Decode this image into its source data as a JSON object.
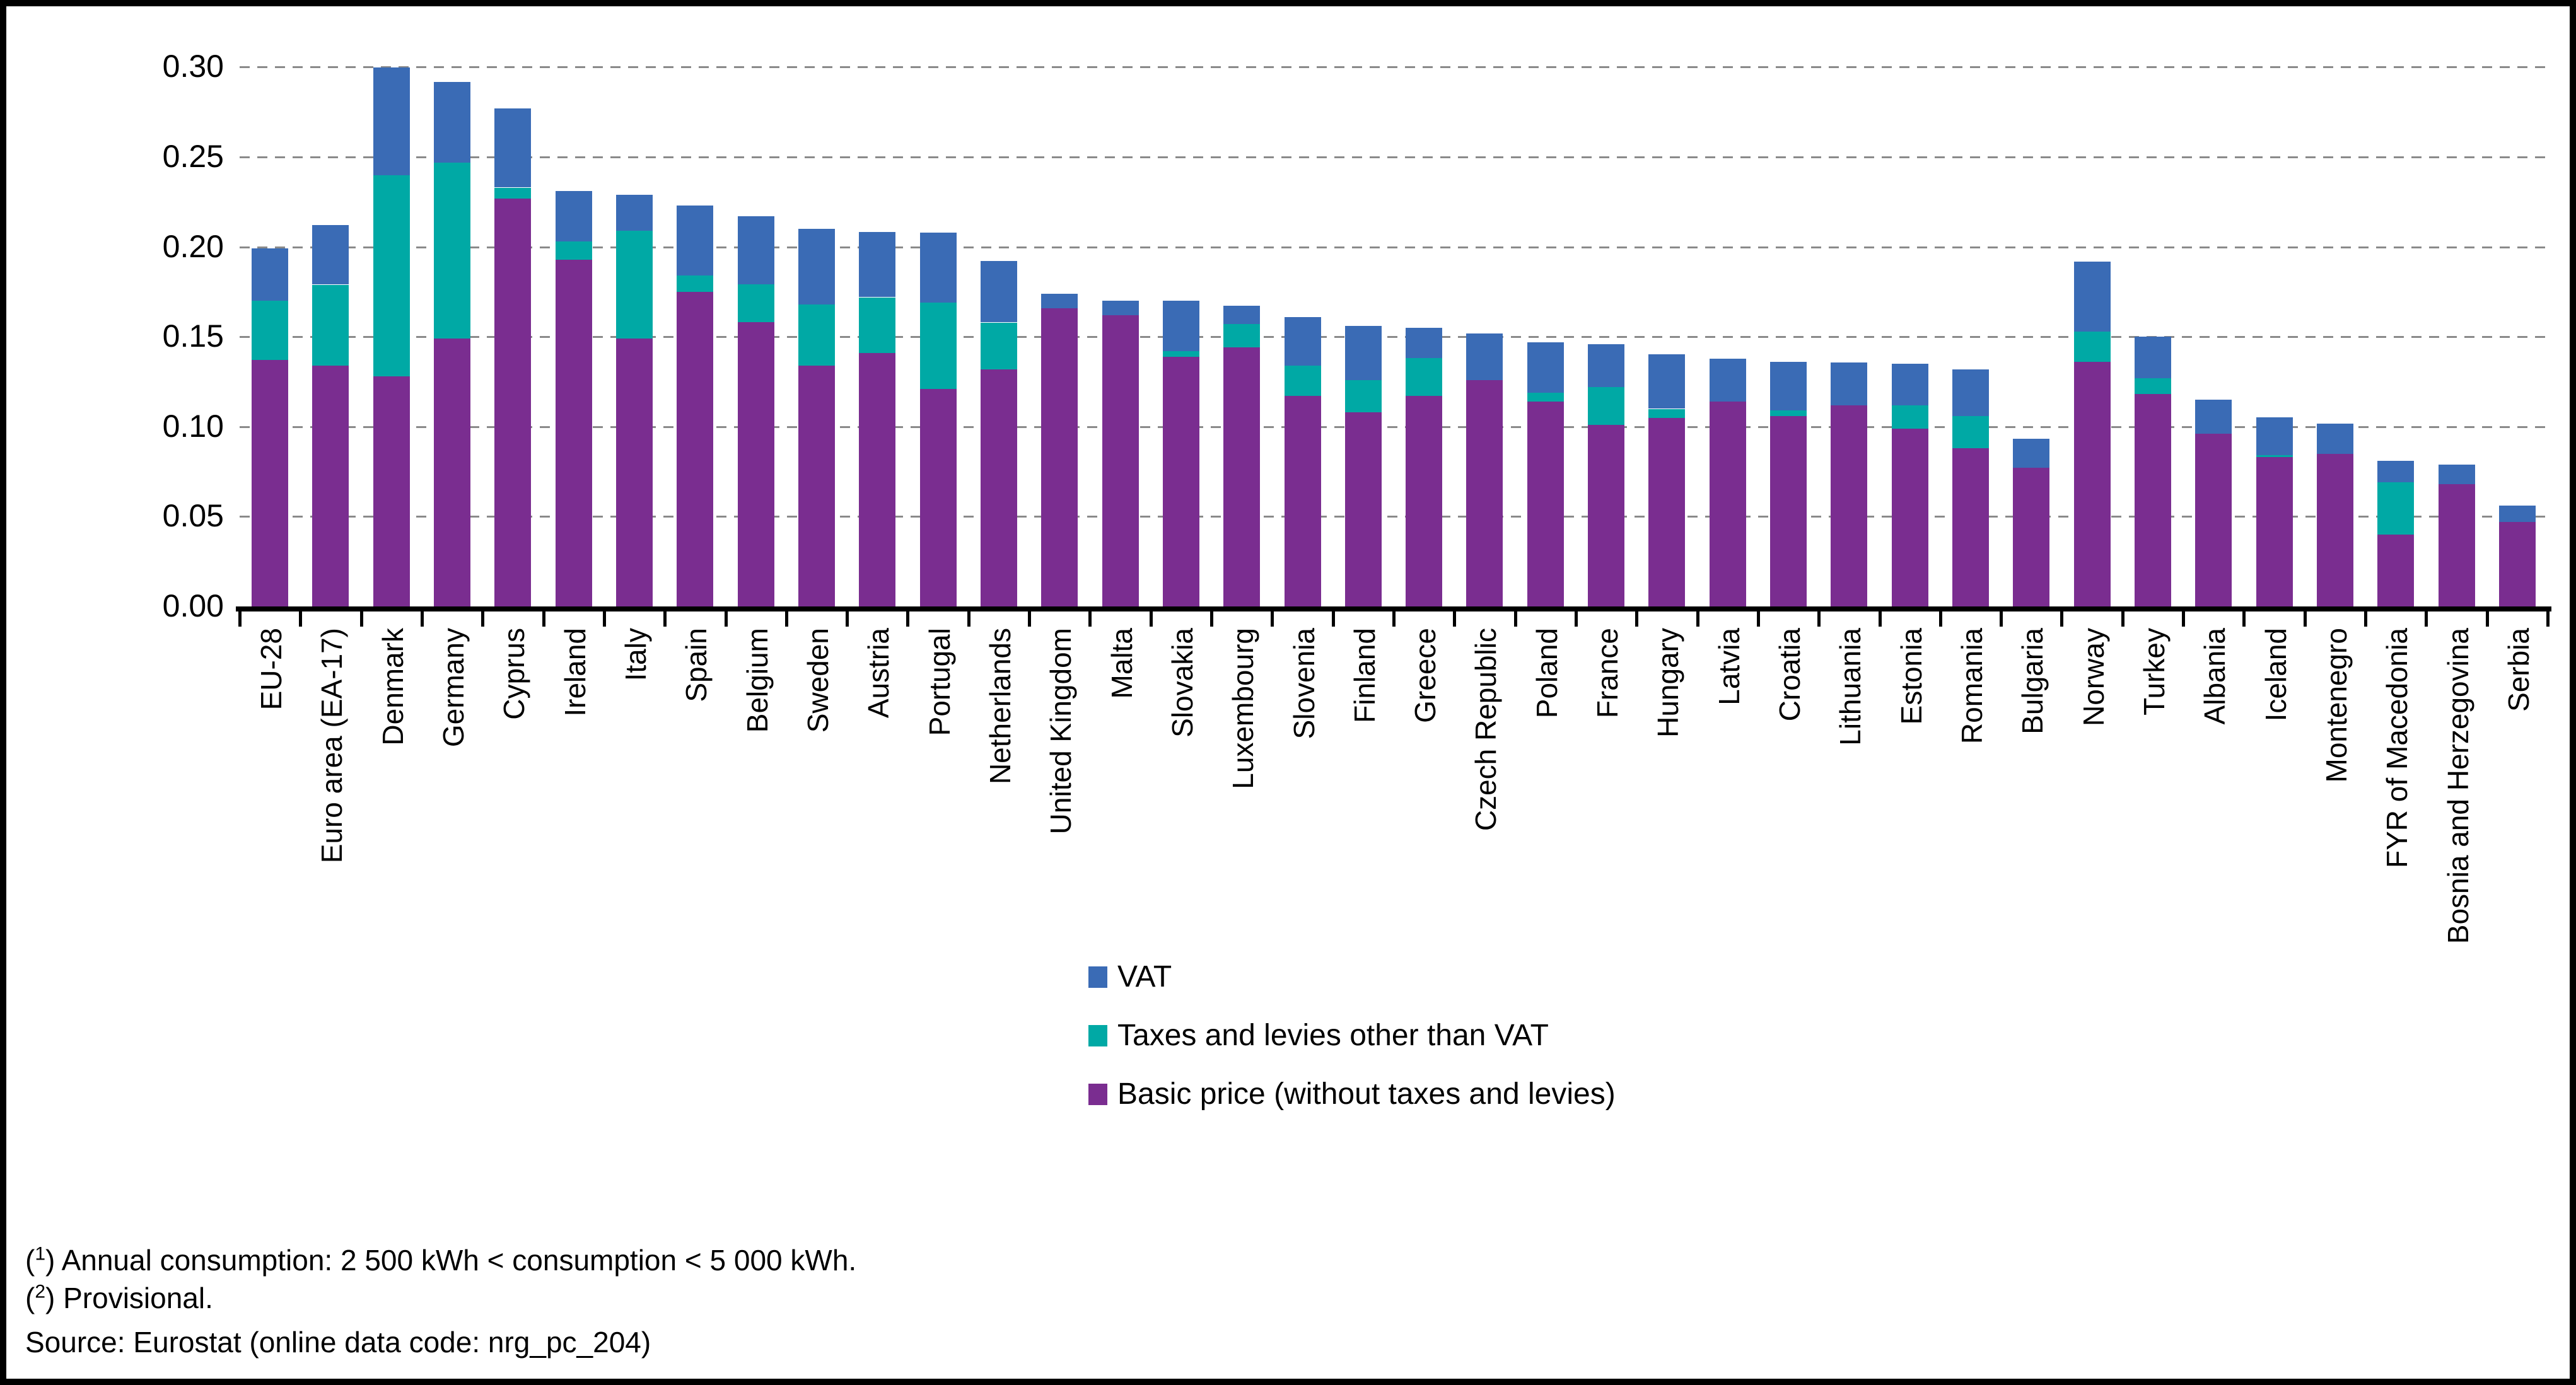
{
  "chart_data": {
    "type": "bar",
    "stacked": true,
    "title": "",
    "xlabel": "",
    "ylabel": "",
    "ylim": [
      0,
      0.3
    ],
    "ytick_step": 0.05,
    "ytick_labels": [
      "0.00",
      "0.05",
      "0.10",
      "0.15",
      "0.20",
      "0.25",
      "0.30"
    ],
    "grid": "horizontal-dashed",
    "gridline_color": "#8a8a8a",
    "axis_color": "#000000",
    "legend_position": "below-plot-center",
    "categories": [
      "EU-28",
      "Euro area (EA-17)",
      "Denmark",
      "Germany",
      "Cyprus",
      "Ireland",
      "Italy",
      "Spain",
      "Belgium",
      "Sweden",
      "Austria",
      "Portugal",
      "Netherlands",
      "United Kingdom",
      "Malta",
      "Slovakia",
      "Luxembourg",
      "Slovenia",
      "Finland",
      "Greece",
      "Czech Republic",
      "Poland",
      "France",
      "Hungary",
      "Latvia",
      "Croatia",
      "Lithuania",
      "Estonia",
      "Romania",
      "Bulgaria",
      "Norway",
      "Turkey",
      "Albania",
      "Iceland",
      "Montenegro",
      "FYR of Macedonia",
      "Bosnia and Herzegovina",
      "Serbia"
    ],
    "series": [
      {
        "name": "Basic price (without taxes and levies)",
        "color": "#7A2D90",
        "values": [
          0.137,
          0.134,
          0.128,
          0.149,
          0.227,
          0.193,
          0.149,
          0.175,
          0.158,
          0.134,
          0.141,
          0.121,
          0.132,
          0.166,
          0.162,
          0.139,
          0.144,
          0.117,
          0.108,
          0.117,
          0.126,
          0.114,
          0.101,
          0.105,
          0.114,
          0.106,
          0.112,
          0.099,
          0.088,
          0.077,
          0.136,
          0.118,
          0.096,
          0.083,
          0.085,
          0.04,
          0.068,
          0.047
        ]
      },
      {
        "name": "Taxes and levies other than VAT",
        "color": "#00A9A5",
        "values": [
          0.033,
          0.045,
          0.112,
          0.098,
          0.006,
          0.01,
          0.06,
          0.009,
          0.021,
          0.034,
          0.031,
          0.048,
          0.026,
          0.0,
          0.0,
          0.003,
          0.013,
          0.017,
          0.018,
          0.021,
          0.0,
          0.005,
          0.021,
          0.005,
          0.0,
          0.003,
          0.0,
          0.013,
          0.018,
          0.0,
          0.017,
          0.009,
          0.0,
          0.001,
          0.0,
          0.029,
          0.0,
          0.0
        ]
      },
      {
        "name": "VAT",
        "color": "#3A6BB5",
        "values": [
          0.029,
          0.033,
          0.06,
          0.045,
          0.044,
          0.028,
          0.02,
          0.039,
          0.038,
          0.042,
          0.036,
          0.039,
          0.034,
          0.008,
          0.008,
          0.028,
          0.01,
          0.027,
          0.03,
          0.017,
          0.026,
          0.028,
          0.024,
          0.03,
          0.024,
          0.027,
          0.024,
          0.023,
          0.026,
          0.016,
          0.039,
          0.023,
          0.019,
          0.021,
          0.017,
          0.012,
          0.011,
          0.009
        ]
      }
    ]
  },
  "legend": {
    "items": [
      {
        "label": "VAT",
        "color": "#3A6BB5"
      },
      {
        "label": "Taxes and levies other than VAT",
        "color": "#00A9A5"
      },
      {
        "label": "Basic price (without taxes and levies)",
        "color": "#7A2D90"
      }
    ]
  },
  "footnotes": {
    "notes": [
      {
        "marker": "1",
        "text": "Annual consumption: 2 500 kWh < consumption < 5 000 kWh."
      },
      {
        "marker": "2",
        "text": "Provisional."
      }
    ],
    "source": "Source: Eurostat (online data code: nrg_pc_204)"
  }
}
